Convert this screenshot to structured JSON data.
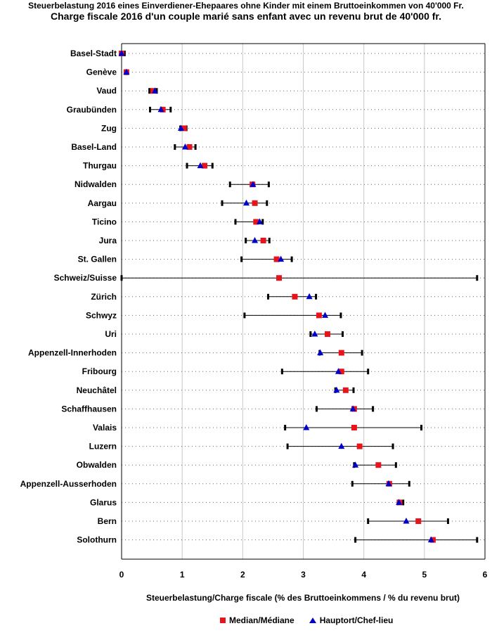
{
  "title_line1": "Steuerbelastung 2016 eines Einverdiener-Ehepaares ohne Kinder mit einem Bruttoeinkommen von 40'000 Fr.",
  "title_line2": "Charge fiscale 2016 d'un couple marié sans enfant avec un revenu brut de 40'000 fr.",
  "colors": {
    "median": "#e8141c",
    "capital": "#0000cc",
    "range": "#000000",
    "grid": "#c8c8c8"
  },
  "chart_data": {
    "type": "range-dot",
    "title": "Steuerbelastung 2016 eines Einverdiener-Ehepaares ohne Kinder mit einem Bruttoeinkommen von 40'000 Fr.",
    "subtitle": "Charge fiscale 2016 d'un couple marié sans enfant avec un revenu brut de 40'000 fr.",
    "xlabel": "Steuerbelastung/Charge fiscale (% des Bruttoeinkommens / % du revenu brut)",
    "ylabel": "",
    "xlim": [
      0,
      6
    ],
    "xticks": [
      "0",
      "1",
      "2",
      "3",
      "4",
      "5",
      "6"
    ],
    "legend": [
      "Median/Médiane",
      "Hauptort/Chef-lieu"
    ],
    "legend_position": "bottom",
    "rows": [
      {
        "name": "Basel-Stadt",
        "min": 0.0,
        "max": 0.05,
        "median": 0.0,
        "capital": 0.0
      },
      {
        "name": "Genève",
        "min": 0.07,
        "max": 0.09,
        "median": 0.08,
        "capital": 0.08
      },
      {
        "name": "Vaud",
        "min": 0.46,
        "max": 0.58,
        "median": 0.52,
        "capital": 0.55
      },
      {
        "name": "Graubünden",
        "min": 0.47,
        "max": 0.81,
        "median": 0.68,
        "capital": 0.65
      },
      {
        "name": "Zug",
        "min": 0.97,
        "max": 1.07,
        "median": 1.03,
        "capital": 0.98
      },
      {
        "name": "Basel-Land",
        "min": 0.88,
        "max": 1.22,
        "median": 1.12,
        "capital": 1.05
      },
      {
        "name": "Thurgau",
        "min": 1.08,
        "max": 1.5,
        "median": 1.37,
        "capital": 1.3
      },
      {
        "name": "Nidwalden",
        "min": 1.79,
        "max": 2.43,
        "median": 2.16,
        "capital": 2.17
      },
      {
        "name": "Aargau",
        "min": 1.66,
        "max": 2.4,
        "median": 2.2,
        "capital": 2.06
      },
      {
        "name": "Ticino",
        "min": 1.88,
        "max": 2.33,
        "median": 2.22,
        "capital": 2.28
      },
      {
        "name": "Jura",
        "min": 2.05,
        "max": 2.44,
        "median": 2.34,
        "capital": 2.2
      },
      {
        "name": "St. Gallen",
        "min": 1.98,
        "max": 2.81,
        "median": 2.56,
        "capital": 2.63
      },
      {
        "name": "Schweiz/Suisse",
        "min": 0.0,
        "max": 5.87,
        "median": 2.6,
        "capital": null
      },
      {
        "name": "Zürich",
        "min": 2.42,
        "max": 3.21,
        "median": 2.86,
        "capital": 3.1
      },
      {
        "name": "Schwyz",
        "min": 2.03,
        "max": 3.62,
        "median": 3.26,
        "capital": 3.36
      },
      {
        "name": "Uri",
        "min": 3.12,
        "max": 3.65,
        "median": 3.4,
        "capital": 3.19
      },
      {
        "name": "Appenzell-Innerhoden",
        "min": 3.27,
        "max": 3.97,
        "median": 3.63,
        "capital": 3.28
      },
      {
        "name": "Fribourg",
        "min": 2.65,
        "max": 4.07,
        "median": 3.63,
        "capital": 3.58
      },
      {
        "name": "Neuchâtel",
        "min": 3.53,
        "max": 3.83,
        "median": 3.7,
        "capital": 3.55
      },
      {
        "name": "Schaffhausen",
        "min": 3.22,
        "max": 4.15,
        "median": 3.84,
        "capital": 3.82
      },
      {
        "name": "Valais",
        "min": 2.7,
        "max": 4.95,
        "median": 3.84,
        "capital": 3.05
      },
      {
        "name": "Luzern",
        "min": 2.74,
        "max": 4.48,
        "median": 3.93,
        "capital": 3.63
      },
      {
        "name": "Obwalden",
        "min": 3.84,
        "max": 4.53,
        "median": 4.24,
        "capital": 3.86
      },
      {
        "name": "Appenzell-Ausserhoden",
        "min": 3.81,
        "max": 4.75,
        "median": 4.42,
        "capital": 4.41
      },
      {
        "name": "Glarus",
        "min": 4.56,
        "max": 4.65,
        "median": 4.59,
        "capital": 4.58
      },
      {
        "name": "Bern",
        "min": 4.07,
        "max": 5.39,
        "median": 4.9,
        "capital": 4.7
      },
      {
        "name": "Solothurn",
        "min": 3.86,
        "max": 5.87,
        "median": 5.14,
        "capital": 5.11
      }
    ]
  }
}
